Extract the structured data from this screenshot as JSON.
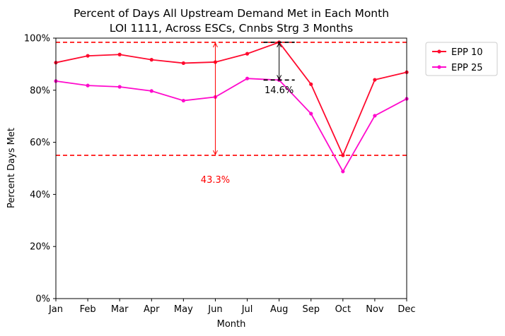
{
  "chart_data": {
    "type": "line",
    "title": [
      "Percent of Days All Upstream Demand Met in Each Month",
      "LOI 1111, Across ESCs, Cnnbs Strg 3 Months"
    ],
    "xlabel": "Month",
    "ylabel": "Percent Days Met",
    "categories": [
      "Jan",
      "Feb",
      "Mar",
      "Apr",
      "May",
      "Jun",
      "Jul",
      "Aug",
      "Sep",
      "Oct",
      "Nov",
      "Dec"
    ],
    "ylim": [
      0,
      100
    ],
    "yticks": [
      0,
      20,
      40,
      60,
      80,
      100
    ],
    "ytick_labels": [
      "0%",
      "20%",
      "40%",
      "60%",
      "80%",
      "100%"
    ],
    "grid": false,
    "legend_position": "outside-top-right",
    "series": [
      {
        "name": "EPP 10",
        "color": "#ff0a2e",
        "values": [
          90.6,
          93.2,
          93.7,
          91.7,
          90.4,
          90.8,
          94.0,
          98.4,
          82.3,
          55.0,
          84.0,
          86.9
        ]
      },
      {
        "name": "EPP 25",
        "color": "#ff0acc",
        "values": [
          83.5,
          81.8,
          81.3,
          79.7,
          76.0,
          77.4,
          84.5,
          83.9,
          71.0,
          48.8,
          70.2,
          76.7
        ]
      }
    ],
    "reference_lines": {
      "upper": 98.4,
      "lower": 55.0,
      "color": "#ff0000"
    },
    "annotations": [
      {
        "text": "43.3%",
        "color": "#ff0000",
        "x": "Jun",
        "y": 45.5,
        "arrow_from": 55.0,
        "arrow_to": 98.4
      },
      {
        "text": "14.6%",
        "color": "#000000",
        "x": "Aug",
        "y": 80.0,
        "arrow_from": 98.4,
        "arrow_to": 83.9
      }
    ]
  }
}
